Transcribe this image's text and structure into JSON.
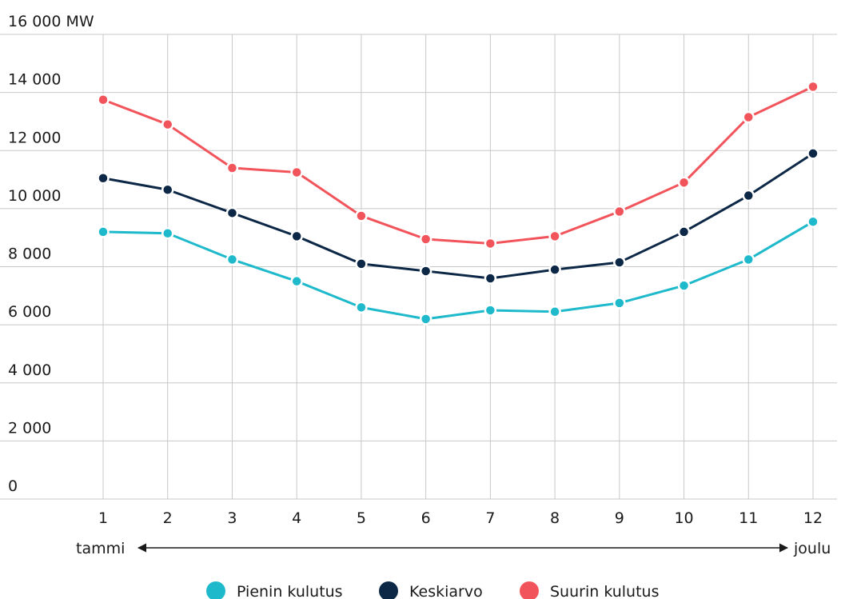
{
  "chart_data": {
    "type": "line",
    "title": "",
    "xlabel": "",
    "ylabel": "",
    "y_unit": "MW",
    "ylim": [
      0,
      16000
    ],
    "y_ticks": [
      0,
      2000,
      4000,
      6000,
      8000,
      10000,
      12000,
      14000,
      16000
    ],
    "y_tick_labels": [
      "0",
      "2 000",
      "4 000",
      "6 000",
      "8 000",
      "10 000",
      "12 000",
      "14 000",
      "16 000"
    ],
    "categories": [
      "1",
      "2",
      "3",
      "4",
      "5",
      "6",
      "7",
      "8",
      "9",
      "10",
      "11",
      "12"
    ],
    "x_start_label": "tammi",
    "x_end_label": "joulu",
    "grid": true,
    "legend_position": "bottom",
    "series": [
      {
        "name": "Pienin kulutus",
        "color": "#1fb9cc",
        "values": [
          9200,
          9150,
          8250,
          7500,
          6600,
          6200,
          6500,
          6450,
          6750,
          7350,
          8250,
          9550
        ]
      },
      {
        "name": "Keskiarvo",
        "color": "#0d2846",
        "values": [
          11050,
          10650,
          9850,
          9050,
          8100,
          7850,
          7600,
          7900,
          8150,
          9200,
          10450,
          11900
        ]
      },
      {
        "name": "Suurin kulutus",
        "color": "#f2545b",
        "values": [
          13750,
          12900,
          11400,
          11250,
          9750,
          8950,
          8800,
          9050,
          9900,
          10900,
          13150,
          14200
        ]
      }
    ]
  }
}
